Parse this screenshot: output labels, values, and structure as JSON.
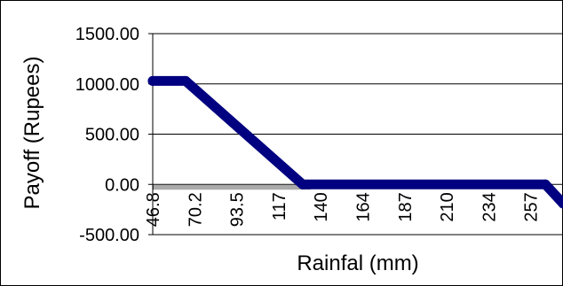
{
  "chart_data": {
    "type": "line",
    "title": "",
    "xlabel": "Rainfal (mm)",
    "ylabel": "Payoff (Rupees)",
    "x": [
      46.8,
      70.2,
      93.5,
      117,
      140,
      164,
      187,
      210,
      234,
      257,
      280
    ],
    "x_tick_labels": [
      "46.8",
      "70.2",
      "93.5",
      "117",
      "140",
      "164",
      "187",
      "210",
      "234",
      "257"
    ],
    "y_tick_labels": [
      "1500.00",
      "1000.00",
      "500.00",
      "0.00",
      "-500.00"
    ],
    "y_ticks": [
      1500,
      1000,
      500,
      0,
      -500
    ],
    "ylim": [
      -500,
      1500
    ],
    "xlim": [
      46.8,
      280
    ],
    "grid": "horizontal",
    "series": [
      {
        "color": "#000080",
        "points": [
          [
            46.8,
            1030
          ],
          [
            65.5,
            1030
          ],
          [
            132,
            0
          ],
          [
            270,
            0
          ],
          [
            280,
            -190
          ]
        ]
      }
    ]
  }
}
